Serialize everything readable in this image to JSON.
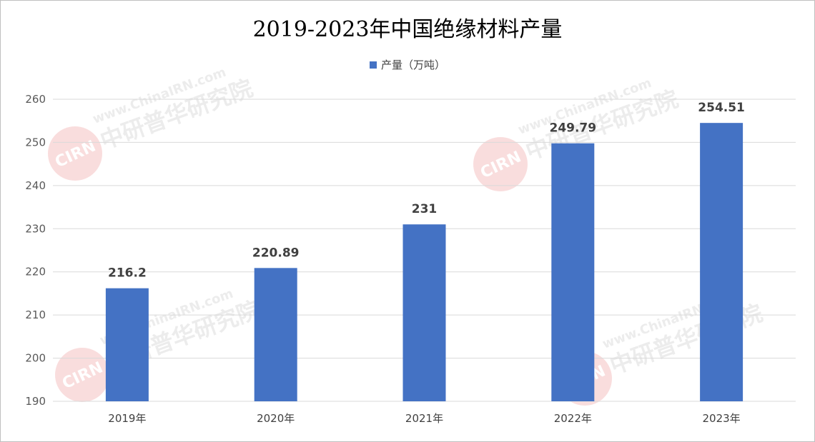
{
  "chart_data": {
    "type": "bar",
    "title": "2019-2023年中国绝缘材料产量",
    "categories": [
      "2019年",
      "2020年",
      "2021年",
      "2022年",
      "2023年"
    ],
    "series": [
      {
        "name": "产量（万吨）",
        "values": [
          216.2,
          220.89,
          231,
          249.79,
          254.51
        ],
        "color": "#4472c4"
      }
    ],
    "data_labels": [
      "216.2",
      "220.89",
      "231",
      "249.79",
      "254.51"
    ],
    "ylim": [
      190,
      260
    ],
    "yticks": [
      190,
      200,
      210,
      220,
      230,
      240,
      250,
      260
    ],
    "grid": true,
    "legend_position": "top"
  },
  "watermark": {
    "logo_text": "CIRN",
    "line1": "www.ChinaIRN.com",
    "line2": "中研普华研究院"
  }
}
